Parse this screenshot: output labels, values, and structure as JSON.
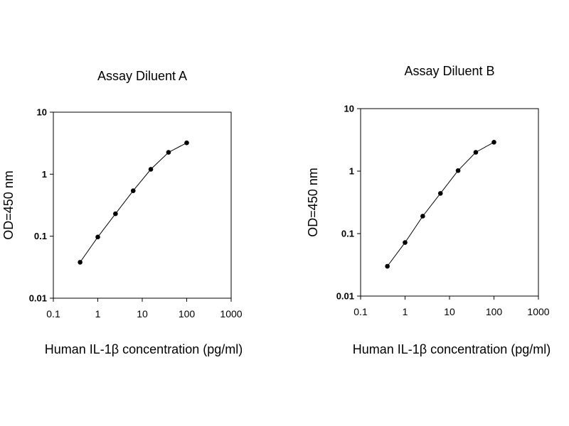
{
  "chart_data": [
    {
      "type": "line",
      "title": "Assay Diluent A",
      "xlabel": "Human IL-1β  concentration (pg/ml)",
      "ylabel": "OD=450 nm",
      "x_scale": "log",
      "y_scale": "log",
      "xlim": [
        0.1,
        1000
      ],
      "ylim": [
        0.01,
        10
      ],
      "xticks": [
        "0.1",
        "1",
        "10",
        "100",
        "1000"
      ],
      "yticks": [
        "0.01",
        "0.1",
        "1",
        "10"
      ],
      "grid": false,
      "series": [
        {
          "x": [
            0.4,
            1,
            2.5,
            6.25,
            15.6,
            39,
            100
          ],
          "y": [
            0.038,
            0.097,
            0.23,
            0.54,
            1.2,
            2.25,
            3.2
          ]
        }
      ]
    },
    {
      "type": "line",
      "title": "Assay Diluent B",
      "xlabel": "Human IL-1β  concentration (pg/ml)",
      "ylabel": "OD=450 nm",
      "x_scale": "log",
      "y_scale": "log",
      "xlim": [
        0.1,
        1000
      ],
      "ylim": [
        0.01,
        10
      ],
      "xticks": [
        "0.1",
        "1",
        "10",
        "100",
        "1000"
      ],
      "yticks": [
        "0.01",
        "0.1",
        "1",
        "10"
      ],
      "grid": false,
      "series": [
        {
          "x": [
            0.4,
            1,
            2.5,
            6.25,
            15.6,
            39,
            100
          ],
          "y": [
            0.03,
            0.072,
            0.19,
            0.44,
            1.02,
            2.0,
            2.9
          ]
        }
      ]
    }
  ]
}
